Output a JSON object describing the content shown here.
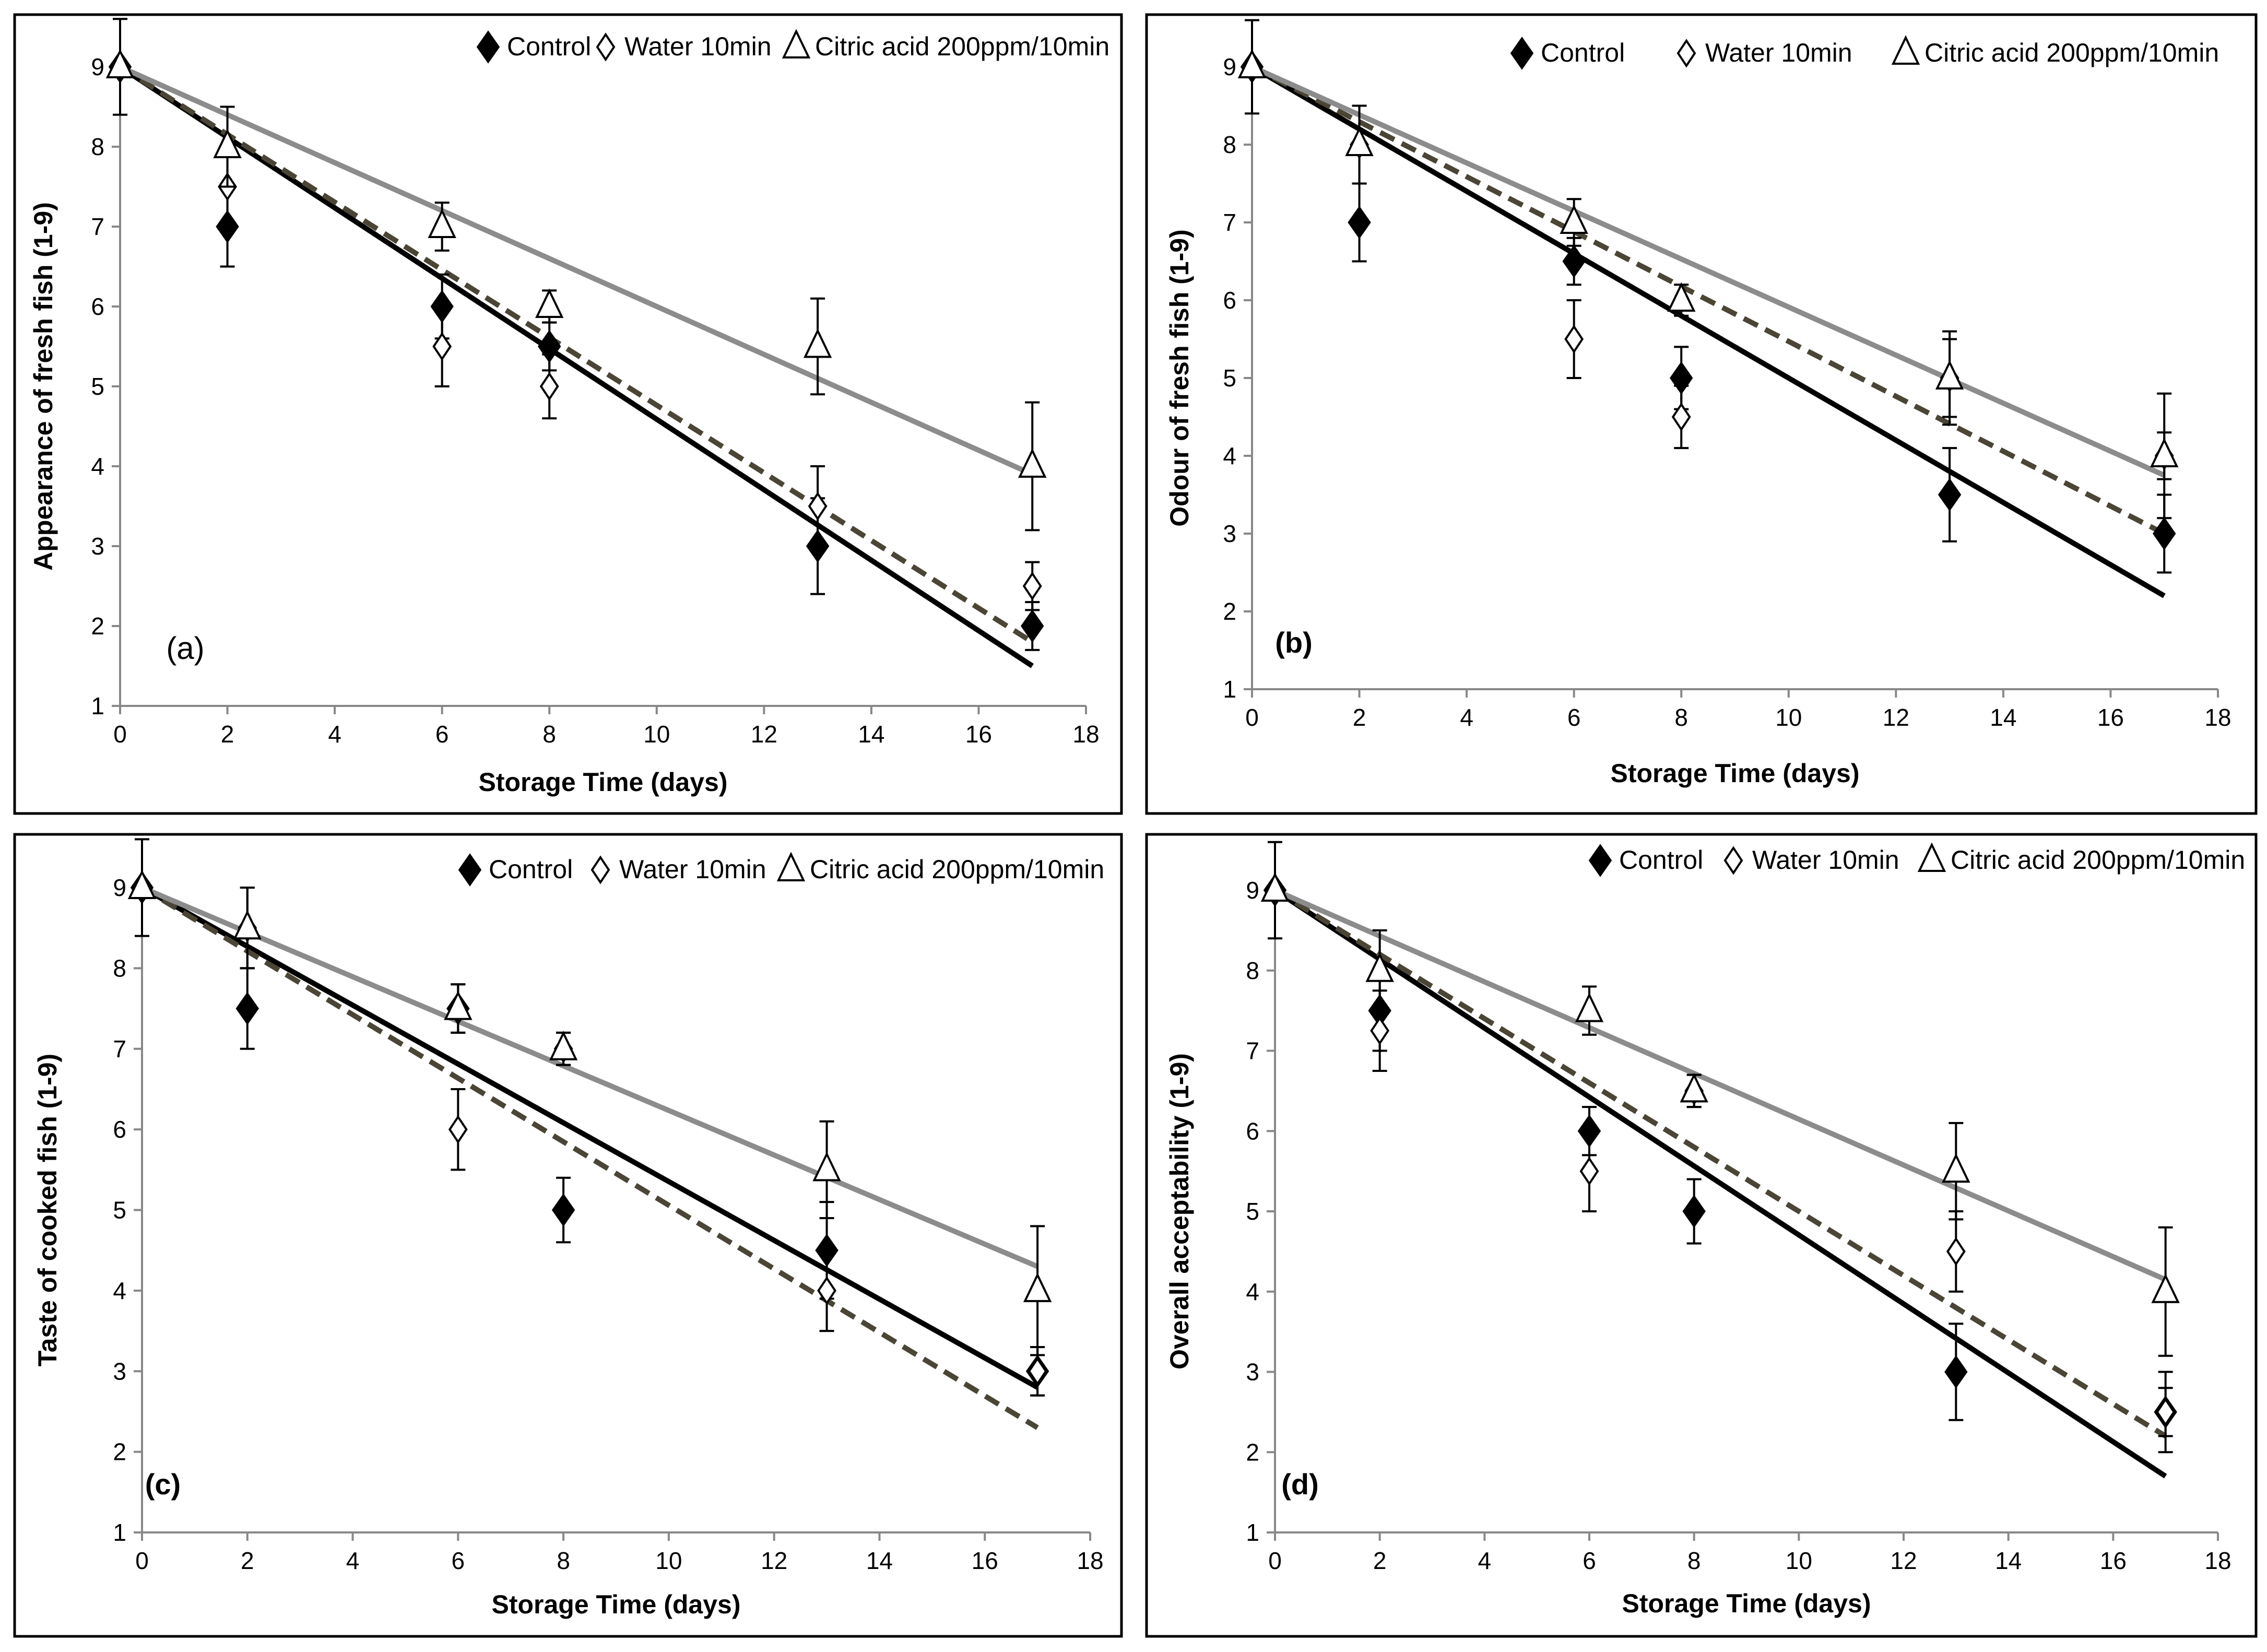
{
  "figure": {
    "xlabel": "Storage Time (days)",
    "x_ticks": [
      "0",
      "2",
      "4",
      "6",
      "8",
      "10",
      "12",
      "14",
      "16",
      "18"
    ],
    "y_ticks": [
      "1",
      "2",
      "3",
      "4",
      "5",
      "6",
      "7",
      "8",
      "9"
    ],
    "legend": [
      "Control",
      "Water 10min",
      "Citric acid 200ppm/10min"
    ],
    "colors": {
      "control": "#000000",
      "water": "#4a4535",
      "citric": "#8c8c8c"
    }
  },
  "chart_data": [
    {
      "type": "scatter",
      "panel_label": "(a)",
      "xlabel": "Storage Time (days)",
      "ylabel": "Appearance of fresh fish (1-9)",
      "xlim": [
        0,
        18
      ],
      "ylim": [
        1,
        9
      ],
      "x": [
        0,
        2,
        6,
        8,
        13,
        17
      ],
      "series": [
        {
          "name": "Control",
          "marker": "filled-diamond",
          "values": [
            9,
            7,
            6,
            5.5,
            3,
            2
          ],
          "errors": [
            0,
            0.5,
            0.4,
            0.3,
            0.6,
            0.3
          ],
          "trend": [
            9,
            1.5
          ]
        },
        {
          "name": "Water 10min",
          "marker": "open-diamond",
          "values": [
            9,
            7.5,
            5.5,
            5,
            3.5,
            2.5
          ],
          "errors": [
            0.6,
            0.5,
            0.5,
            0.4,
            0.5,
            0.3
          ],
          "trend": [
            9,
            1.8
          ]
        },
        {
          "name": "Citric acid 200ppm/10min",
          "marker": "open-triangle",
          "values": [
            9,
            8,
            7,
            6,
            5.5,
            4
          ],
          "errors": [
            0,
            0.5,
            0.3,
            0.2,
            0.6,
            0.8
          ],
          "trend": [
            9,
            3.9
          ]
        }
      ]
    },
    {
      "type": "scatter",
      "panel_label": "(b)",
      "xlabel": "Storage Time (days)",
      "ylabel": "Odour of fresh fish (1-9)",
      "xlim": [
        0,
        18
      ],
      "ylim": [
        1,
        9
      ],
      "x": [
        0,
        2,
        6,
        8,
        13,
        17
      ],
      "series": [
        {
          "name": "Control",
          "marker": "filled-diamond",
          "values": [
            9,
            7,
            6.5,
            5,
            3.5,
            3
          ],
          "errors": [
            0,
            0.5,
            0.3,
            0.4,
            0.6,
            0.5
          ],
          "trend": [
            9,
            2.2
          ]
        },
        {
          "name": "Water 10min",
          "marker": "open-diamond",
          "values": [
            9,
            8,
            5.5,
            4.5,
            5,
            4
          ],
          "errors": [
            0.6,
            0.5,
            0.5,
            0.4,
            0.5,
            0.3
          ],
          "trend": [
            9,
            3.0
          ]
        },
        {
          "name": "Citric acid 200ppm/10min",
          "marker": "open-triangle",
          "values": [
            9,
            8,
            7,
            6,
            5,
            4
          ],
          "errors": [
            0,
            0.5,
            0.3,
            0.2,
            0.6,
            0.8
          ],
          "trend": [
            9,
            3.75
          ]
        }
      ]
    },
    {
      "type": "scatter",
      "panel_label": "(c)",
      "xlabel": "Storage Time (days)",
      "ylabel": "Taste of cooked fish (1-9)",
      "xlim": [
        0,
        18
      ],
      "ylim": [
        1,
        9
      ],
      "x": [
        0,
        2,
        6,
        8,
        13,
        17
      ],
      "series": [
        {
          "name": "Control",
          "marker": "filled-diamond",
          "values": [
            9,
            7.5,
            7.5,
            5,
            4.5,
            3
          ],
          "errors": [
            0,
            0.5,
            0.3,
            0.4,
            0.6,
            0.3
          ],
          "trend": [
            9,
            2.8
          ]
        },
        {
          "name": "Water 10min",
          "marker": "open-diamond",
          "values": [
            9,
            8.5,
            6,
            7,
            4,
            3
          ],
          "errors": [
            0.6,
            0.5,
            0.5,
            0.2,
            0.5,
            0.3
          ],
          "trend": [
            9,
            2.3
          ]
        },
        {
          "name": "Citric acid 200ppm/10min",
          "marker": "open-triangle",
          "values": [
            9,
            8.5,
            7.5,
            7,
            5.5,
            4
          ],
          "errors": [
            0,
            0.5,
            0.3,
            0.2,
            0.6,
            0.8
          ],
          "trend": [
            9,
            4.3
          ]
        }
      ]
    },
    {
      "type": "scatter",
      "panel_label": "(d)",
      "xlabel": "Storage Time (days)",
      "ylabel": "Overall acceptability (1-9)",
      "xlim": [
        0,
        18
      ],
      "ylim": [
        1,
        9
      ],
      "x": [
        0,
        2,
        6,
        8,
        13,
        17
      ],
      "series": [
        {
          "name": "Control",
          "marker": "filled-diamond",
          "values": [
            9,
            7.5,
            6,
            5,
            3,
            2.5
          ],
          "errors": [
            0,
            0.5,
            0.3,
            0.4,
            0.6,
            0.5
          ],
          "trend": [
            9,
            1.7
          ]
        },
        {
          "name": "Water 10min",
          "marker": "open-diamond",
          "values": [
            9,
            7.25,
            5.5,
            6.5,
            4.5,
            2.5
          ],
          "errors": [
            0.6,
            0.5,
            0.5,
            0.2,
            0.5,
            0.3
          ],
          "trend": [
            9,
            2.2
          ]
        },
        {
          "name": "Citric acid 200ppm/10min",
          "marker": "open-triangle",
          "values": [
            9,
            8,
            7.5,
            6.5,
            5.5,
            4
          ],
          "errors": [
            0,
            0.5,
            0.3,
            0.2,
            0.6,
            0.8
          ],
          "trend": [
            9,
            4.15
          ]
        }
      ]
    }
  ]
}
